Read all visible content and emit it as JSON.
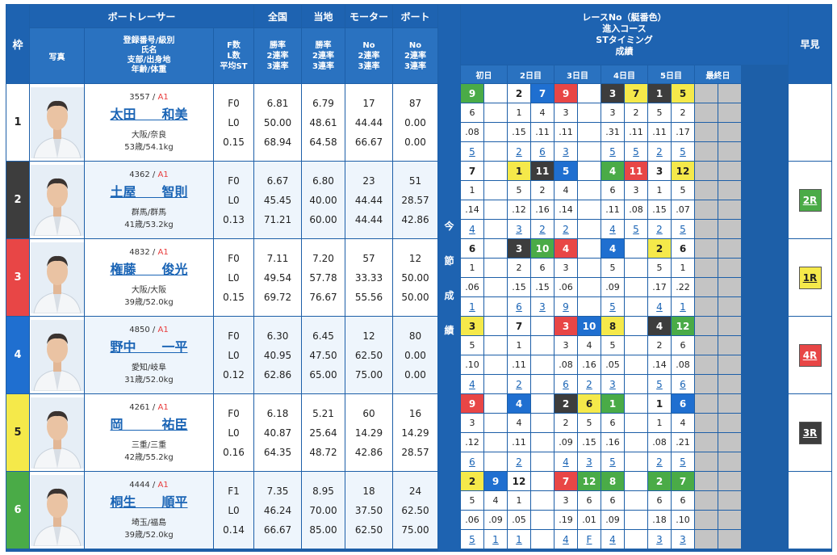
{
  "header": {
    "waku": "枠",
    "racer": "ボートレーサー",
    "photo": "写真",
    "info": [
      "登録番号/級別",
      "氏名",
      "支部/出身地",
      "年齢/体重"
    ],
    "fl": [
      "F数",
      "L数",
      "平均ST"
    ],
    "zenkoku": "全国",
    "touchi": "当地",
    "motor": "モーター",
    "boat": "ボート",
    "rate": [
      "勝率",
      "2連率",
      "3連率"
    ],
    "no_rate": [
      "No",
      "2連率",
      "3連率"
    ],
    "konsetsu": [
      "今",
      "節",
      "成",
      "績"
    ],
    "race_info": [
      "レースNo（艇番色）",
      "進入コース",
      "STタイミング",
      "成績"
    ],
    "days": [
      "初日",
      "2日目",
      "3日目",
      "4日目",
      "5日目",
      "最終日"
    ],
    "hayami": "早見"
  },
  "colors": {
    "waku": [
      "#ffffff",
      "#3d3d3d",
      "#e84646",
      "#1f6fd0",
      "#f5e94a",
      "#4aab47"
    ],
    "waku_text": [
      "#222",
      "#fff",
      "#fff",
      "#fff",
      "#222",
      "#fff"
    ]
  },
  "racers": [
    {
      "waku": "1",
      "reg": "3557",
      "cls": "A1",
      "name": "太田　　和美",
      "branch": "大阪/奈良",
      "age": "53歳/54.1kg",
      "f": "F0",
      "l": "L0",
      "st": "0.15",
      "zenkoku": [
        "6.81",
        "50.00",
        "68.94"
      ],
      "touchi": [
        "6.79",
        "48.61",
        "64.58"
      ],
      "motor": [
        "17",
        "44.44",
        "66.67"
      ],
      "boat": [
        "87",
        "0.00",
        "0.00"
      ],
      "races": [
        {
          "r": "9",
          "c": 5,
          "in": "6",
          "st": ".08",
          "res": "5"
        },
        null,
        {
          "r": "2",
          "c": 0,
          "in": "1",
          "st": ".15",
          "res": "2"
        },
        {
          "r": "7",
          "c": 3,
          "in": "4",
          "st": ".11",
          "res": "6"
        },
        {
          "r": "9",
          "c": 2,
          "in": "3",
          "st": ".11",
          "res": "3"
        },
        null,
        {
          "r": "3",
          "c": 1,
          "in": "3",
          "st": ".31",
          "res": "5"
        },
        {
          "r": "7",
          "c": 4,
          "in": "2",
          "st": ".11",
          "res": "5"
        },
        {
          "r": "1",
          "c": 1,
          "in": "5",
          "st": ".11",
          "res": "2"
        },
        {
          "r": "5",
          "c": 4,
          "in": "2",
          "st": ".17",
          "res": "5"
        },
        null,
        null
      ],
      "hayami": ""
    },
    {
      "waku": "2",
      "reg": "4362",
      "cls": "A1",
      "name": "土屋　　智則",
      "branch": "群馬/群馬",
      "age": "41歳/53.2kg",
      "f": "F0",
      "l": "L0",
      "st": "0.13",
      "zenkoku": [
        "6.67",
        "45.45",
        "71.21"
      ],
      "touchi": [
        "6.80",
        "40.00",
        "60.00"
      ],
      "motor": [
        "23",
        "44.44",
        "44.44"
      ],
      "boat": [
        "51",
        "28.57",
        "42.86"
      ],
      "races": [
        {
          "r": "7",
          "c": 0,
          "in": "1",
          "st": ".14",
          "res": "4"
        },
        null,
        {
          "r": "1",
          "c": 4,
          "in": "5",
          "st": ".12",
          "res": "3"
        },
        {
          "r": "11",
          "c": 1,
          "in": "2",
          "st": ".16",
          "res": "2"
        },
        {
          "r": "5",
          "c": 3,
          "in": "4",
          "st": ".14",
          "res": "2"
        },
        null,
        {
          "r": "4",
          "c": 5,
          "in": "6",
          "st": ".11",
          "res": "4"
        },
        {
          "r": "11",
          "c": 2,
          "in": "3",
          "st": ".08",
          "res": "5"
        },
        {
          "r": "3",
          "c": 0,
          "in": "1",
          "st": ".15",
          "res": "2"
        },
        {
          "r": "12",
          "c": 4,
          "in": "5",
          "st": ".07",
          "res": "5"
        },
        null,
        null
      ],
      "hayami": "2R",
      "hcolor": "#4aab47",
      "htext": "#fff"
    },
    {
      "waku": "3",
      "reg": "4832",
      "cls": "A1",
      "name": "権藤　　俊光",
      "branch": "大阪/大阪",
      "age": "39歳/52.0kg",
      "f": "F0",
      "l": "L0",
      "st": "0.15",
      "zenkoku": [
        "7.11",
        "49.54",
        "69.72"
      ],
      "touchi": [
        "7.20",
        "57.78",
        "76.67"
      ],
      "motor": [
        "57",
        "33.33",
        "55.56"
      ],
      "boat": [
        "12",
        "50.00",
        "50.00"
      ],
      "races": [
        {
          "r": "6",
          "c": 0,
          "in": "1",
          "st": ".06",
          "res": "1"
        },
        null,
        {
          "r": "3",
          "c": 1,
          "in": "2",
          "st": ".15",
          "res": "6"
        },
        {
          "r": "10",
          "c": 5,
          "in": "6",
          "st": ".15",
          "res": "3"
        },
        {
          "r": "4",
          "c": 2,
          "in": "3",
          "st": ".06",
          "res": "9"
        },
        null,
        {
          "r": "4",
          "c": 3,
          "in": "5",
          "st": ".09",
          "res": "5"
        },
        null,
        {
          "r": "2",
          "c": 4,
          "in": "5",
          "st": ".17",
          "res": "4"
        },
        {
          "r": "6",
          "c": 0,
          "in": "1",
          "st": ".22",
          "res": "1"
        },
        null,
        null
      ],
      "hayami": "1R",
      "hcolor": "#f5e94a",
      "htext": "#222"
    },
    {
      "waku": "4",
      "reg": "4850",
      "cls": "A1",
      "name": "野中　　一平",
      "branch": "愛知/岐阜",
      "age": "31歳/52.0kg",
      "f": "F0",
      "l": "L0",
      "st": "0.12",
      "zenkoku": [
        "6.30",
        "40.95",
        "62.86"
      ],
      "touchi": [
        "6.45",
        "47.50",
        "65.00"
      ],
      "motor": [
        "12",
        "62.50",
        "75.00"
      ],
      "boat": [
        "80",
        "0.00",
        "0.00"
      ],
      "races": [
        {
          "r": "3",
          "c": 4,
          "in": "5",
          "st": ".10",
          "res": "4"
        },
        null,
        {
          "r": "7",
          "c": 0,
          "in": "1",
          "st": ".11",
          "res": "2"
        },
        null,
        {
          "r": "3",
          "c": 2,
          "in": "3",
          "st": ".08",
          "res": "6"
        },
        {
          "r": "10",
          "c": 3,
          "in": "4",
          "st": ".16",
          "res": "2"
        },
        {
          "r": "8",
          "c": 4,
          "in": "5",
          "st": ".05",
          "res": "3"
        },
        null,
        {
          "r": "4",
          "c": 1,
          "in": "2",
          "st": ".14",
          "res": "5"
        },
        {
          "r": "12",
          "c": 5,
          "in": "6",
          "st": ".08",
          "res": "6"
        },
        null,
        null
      ],
      "hayami": "4R",
      "hcolor": "#e84646",
      "htext": "#fff"
    },
    {
      "waku": "5",
      "reg": "4261",
      "cls": "A1",
      "name": "岡　　　祐臣",
      "branch": "三重/三重",
      "age": "42歳/55.2kg",
      "f": "F0",
      "l": "L0",
      "st": "0.16",
      "zenkoku": [
        "6.18",
        "40.87",
        "64.35"
      ],
      "touchi": [
        "5.21",
        "25.64",
        "48.72"
      ],
      "motor": [
        "60",
        "14.29",
        "42.86"
      ],
      "boat": [
        "16",
        "14.29",
        "28.57"
      ],
      "races": [
        {
          "r": "9",
          "c": 2,
          "in": "3",
          "st": ".12",
          "res": "6"
        },
        null,
        {
          "r": "4",
          "c": 3,
          "in": "4",
          "st": ".11",
          "res": "2"
        },
        null,
        {
          "r": "2",
          "c": 1,
          "in": "2",
          "st": ".09",
          "res": "4"
        },
        {
          "r": "6",
          "c": 4,
          "in": "5",
          "st": ".15",
          "res": "3"
        },
        {
          "r": "1",
          "c": 5,
          "in": "6",
          "st": ".16",
          "res": "5"
        },
        null,
        {
          "r": "1",
          "c": 0,
          "in": "1",
          "st": ".08",
          "res": "2"
        },
        {
          "r": "6",
          "c": 3,
          "in": "4",
          "st": ".21",
          "res": "5"
        },
        null,
        null
      ],
      "hayami": "3R",
      "hcolor": "#3d3d3d",
      "htext": "#fff"
    },
    {
      "waku": "6",
      "reg": "4444",
      "cls": "A1",
      "name": "桐生　　順平",
      "branch": "埼玉/福島",
      "age": "39歳/52.0kg",
      "f": "F1",
      "l": "L0",
      "st": "0.14",
      "zenkoku": [
        "7.35",
        "46.24",
        "66.67"
      ],
      "touchi": [
        "8.95",
        "70.00",
        "85.00"
      ],
      "motor": [
        "18",
        "37.50",
        "62.50"
      ],
      "boat": [
        "24",
        "62.50",
        "75.00"
      ],
      "races": [
        {
          "r": "2",
          "c": 4,
          "in": "5",
          "st": ".06",
          "res": "5"
        },
        {
          "r": "9",
          "c": 3,
          "in": "4",
          "st": ".09",
          "res": "1"
        },
        {
          "r": "12",
          "c": 0,
          "in": "1",
          "st": ".05",
          "res": "1"
        },
        null,
        {
          "r": "7",
          "c": 2,
          "in": "3",
          "st": ".19",
          "res": "4"
        },
        {
          "r": "12",
          "c": 5,
          "in": "6",
          "st": ".01",
          "res": "F"
        },
        {
          "r": "8",
          "c": 5,
          "in": "6",
          "st": ".09",
          "res": "4"
        },
        null,
        {
          "r": "2",
          "c": 5,
          "in": "6",
          "st": ".18",
          "res": "3"
        },
        {
          "r": "7",
          "c": 5,
          "in": "6",
          "st": ".10",
          "res": "3"
        },
        null,
        null
      ],
      "hayami": ""
    }
  ]
}
